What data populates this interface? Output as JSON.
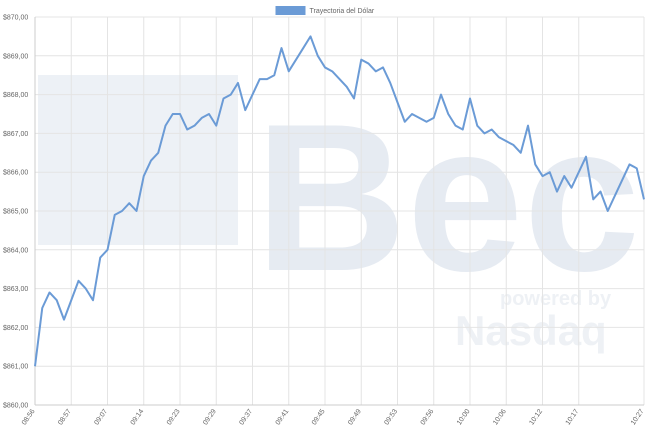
{
  "chart_data": {
    "type": "line",
    "legend": "top-center",
    "grid": true,
    "watermark": {
      "brand": "Bec",
      "tagline": "powered by",
      "partner": "Nasdaq"
    },
    "categories": [
      "08:56",
      null,
      null,
      null,
      null,
      "08:57",
      null,
      null,
      null,
      null,
      "09:07",
      null,
      null,
      null,
      null,
      "09:14",
      null,
      null,
      null,
      null,
      "09:23",
      null,
      null,
      null,
      null,
      "09:29",
      null,
      null,
      null,
      null,
      "09:37",
      null,
      null,
      null,
      null,
      "09:41",
      null,
      null,
      null,
      null,
      "09:45",
      null,
      null,
      null,
      null,
      "09:49",
      null,
      null,
      null,
      null,
      "09:53",
      null,
      null,
      null,
      null,
      "09:56",
      null,
      null,
      null,
      null,
      "10:00",
      null,
      null,
      null,
      null,
      "10:06",
      null,
      null,
      null,
      null,
      "10:12",
      null,
      null,
      null,
      null,
      "10:17",
      null,
      null,
      null,
      null,
      null,
      null,
      null,
      null,
      "10:27"
    ],
    "series": [
      {
        "name": "Trayectoria del Dólar",
        "color": "#6b9bd6",
        "values": [
          861.0,
          862.5,
          862.9,
          862.7,
          862.2,
          862.7,
          863.2,
          863.0,
          862.7,
          863.8,
          864.0,
          864.9,
          865.0,
          865.2,
          865.0,
          865.9,
          866.3,
          866.5,
          867.2,
          867.5,
          867.5,
          867.1,
          867.2,
          867.4,
          867.5,
          867.2,
          867.9,
          868.0,
          868.3,
          867.6,
          868.0,
          868.4,
          868.4,
          868.5,
          869.2,
          868.6,
          868.9,
          869.2,
          869.5,
          869.0,
          868.7,
          868.6,
          868.4,
          868.2,
          867.9,
          868.9,
          868.8,
          868.6,
          868.7,
          868.3,
          867.8,
          867.3,
          867.5,
          867.4,
          867.3,
          867.4,
          868.0,
          867.5,
          867.2,
          867.1,
          867.9,
          867.2,
          867.0,
          867.1,
          866.9,
          866.8,
          866.7,
          866.5,
          867.2,
          866.2,
          865.9,
          866.0,
          865.5,
          865.9,
          865.6,
          866.0,
          866.4,
          865.3,
          865.5,
          865.0,
          865.4,
          865.8,
          866.2,
          866.1,
          865.3
        ]
      }
    ],
    "ylim": [
      860,
      870
    ],
    "yticks": [
      {
        "value": 860,
        "label": "$860,00"
      },
      {
        "value": 861,
        "label": "$861,00"
      },
      {
        "value": 862,
        "label": "$862,00"
      },
      {
        "value": 863,
        "label": "$863,00"
      },
      {
        "value": 864,
        "label": "$864,00"
      },
      {
        "value": 865,
        "label": "$865,00"
      },
      {
        "value": 866,
        "label": "$866,00"
      },
      {
        "value": 867,
        "label": "$867,00"
      },
      {
        "value": 868,
        "label": "$868,00"
      },
      {
        "value": 869,
        "label": "$869,00"
      },
      {
        "value": 870,
        "label": "$870,00"
      }
    ]
  }
}
